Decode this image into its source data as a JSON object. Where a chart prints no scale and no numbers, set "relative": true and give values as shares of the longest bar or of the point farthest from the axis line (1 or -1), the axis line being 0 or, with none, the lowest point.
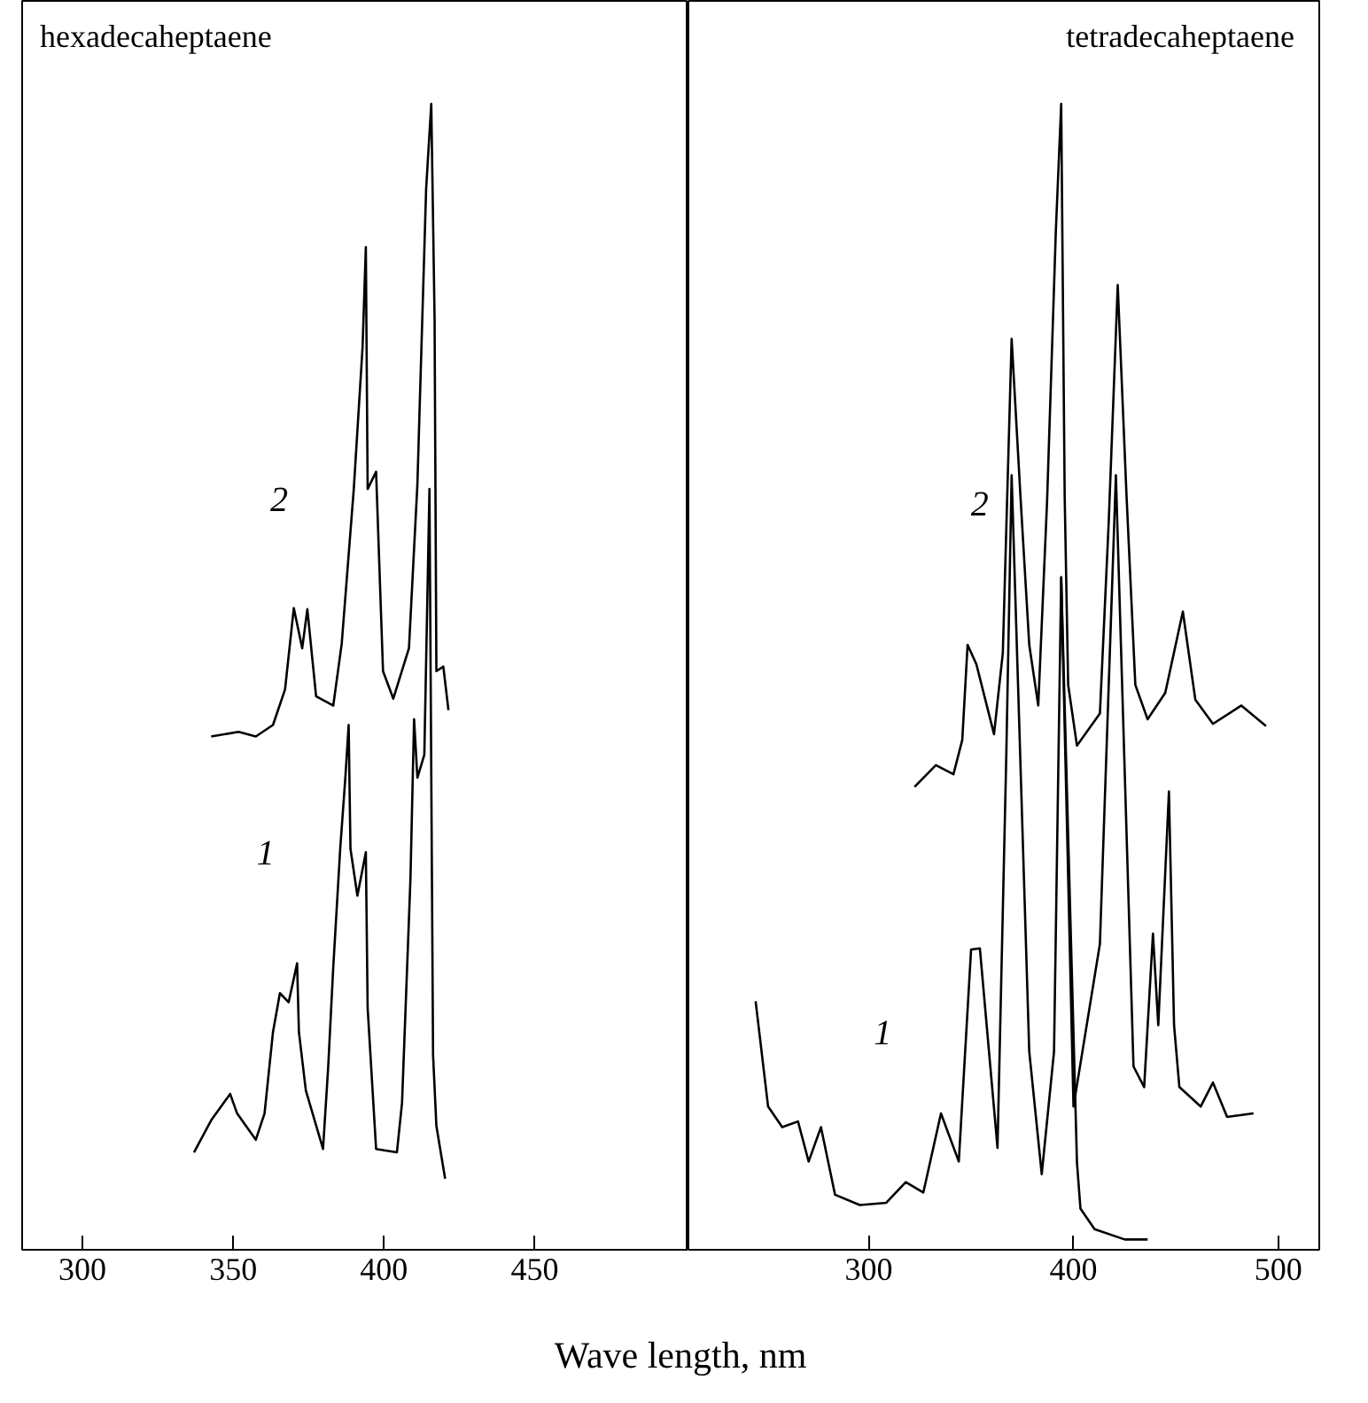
{
  "chart_data": [
    {
      "type": "line",
      "title": "hexadecaheptaene",
      "xlabel": "Wave length, nm",
      "relative": true,
      "xlim": [
        280,
        501
      ],
      "xticks": [
        300,
        350,
        400,
        450
      ],
      "grid": false,
      "marker": "none",
      "line_style": "solid",
      "series": [
        {
          "name": "1",
          "color": "#000000",
          "x": [
            337.0,
            342.7,
            349.0,
            351.3,
            357.5,
            360.4,
            363.2,
            365.5,
            368.4,
            371.2,
            371.8,
            374.1,
            379.8,
            381.5,
            383.2,
            385.5,
            387.2,
            388.3,
            388.9,
            391.2,
            394.0,
            394.6,
            397.4,
            404.3,
            406.0,
            408.8,
            410.0,
            411.1,
            413.4,
            415.1,
            416.3,
            417.4,
            420.3
          ],
          "values": [
            0.085,
            0.113,
            0.136,
            0.119,
            0.096,
            0.119,
            0.19,
            0.224,
            0.216,
            0.25,
            0.19,
            0.139,
            0.088,
            0.159,
            0.247,
            0.35,
            0.412,
            0.458,
            0.35,
            0.309,
            0.347,
            0.211,
            0.088,
            0.085,
            0.128,
            0.324,
            0.463,
            0.412,
            0.432,
            0.664,
            0.17,
            0.108,
            0.062
          ]
        },
        {
          "name": "2",
          "color": "#000000",
          "x": [
            342.7,
            351.8,
            357.5,
            363.2,
            367.2,
            370.1,
            372.9,
            374.6,
            377.5,
            383.2,
            386.0,
            390.0,
            392.9,
            394.0,
            394.6,
            397.4,
            399.7,
            403.1,
            408.3,
            411.1,
            414.0,
            415.7,
            416.8,
            417.4,
            419.7,
            421.4
          ],
          "values": [
            0.448,
            0.452,
            0.448,
            0.458,
            0.489,
            0.56,
            0.525,
            0.559,
            0.483,
            0.475,
            0.529,
            0.664,
            0.787,
            0.875,
            0.664,
            0.679,
            0.505,
            0.481,
            0.525,
            0.668,
            0.926,
            1.0,
            0.813,
            0.505,
            0.509,
            0.471
          ]
        }
      ]
    },
    {
      "type": "line",
      "title": "tetradecaheptaene",
      "relative": true,
      "xlim": [
        212,
        520
      ],
      "xticks": [
        300,
        400,
        500
      ],
      "grid": false,
      "marker": "none",
      "line_style": "solid",
      "series": [
        {
          "name": "1",
          "color": "#000000",
          "x": [
            244.8,
            250.9,
            257.8,
            265.5,
            270.7,
            276.7,
            283.6,
            295.7,
            308.6,
            318.1,
            326.7,
            335.3,
            344.0,
            350.0,
            354.3,
            362.9,
            367.2,
            369.8,
            378.4,
            384.5,
            390.5,
            394.0,
            400.0,
            412.9,
            420.7,
            429.3,
            434.5,
            438.8,
            441.4,
            446.6,
            449.1,
            451.7,
            462.1,
            468.1,
            475.0,
            487.9
          ],
          "values": [
            0.217,
            0.125,
            0.107,
            0.112,
            0.077,
            0.107,
            0.048,
            0.039,
            0.041,
            0.059,
            0.05,
            0.119,
            0.077,
            0.262,
            0.263,
            0.089,
            0.432,
            0.676,
            0.173,
            0.066,
            0.173,
            0.587,
            0.125,
            0.267,
            0.676,
            0.16,
            0.142,
            0.276,
            0.196,
            0.4,
            0.196,
            0.142,
            0.125,
            0.146,
            0.116,
            0.119
          ]
        },
        {
          "color": "#000000",
          "x": [
            394.0,
            401.7,
            403.4,
            410.3,
            425.0,
            436.2
          ],
          "values": [
            0.587,
            0.076,
            0.036,
            0.018,
            0.009,
            0.009
          ]
        },
        {
          "name": "2",
          "color": "#000000",
          "x": [
            322.4,
            332.8,
            341.4,
            345.7,
            348.3,
            352.6,
            361.2,
            365.5,
            369.8,
            374.1,
            378.4,
            382.8,
            387.1,
            391.4,
            394.0,
            395.7,
            397.4,
            401.7,
            412.9,
            417.2,
            421.6,
            425.9,
            430.2,
            436.2,
            444.8,
            453.4,
            459.5,
            468.1,
            481.9,
            494.0
          ],
          "values": [
            0.404,
            0.423,
            0.415,
            0.445,
            0.528,
            0.511,
            0.45,
            0.521,
            0.795,
            0.658,
            0.528,
            0.475,
            0.653,
            0.89,
            1.0,
            0.658,
            0.493,
            0.44,
            0.468,
            0.635,
            0.842,
            0.658,
            0.493,
            0.463,
            0.486,
            0.557,
            0.48,
            0.459,
            0.475,
            0.457
          ]
        }
      ]
    }
  ]
}
